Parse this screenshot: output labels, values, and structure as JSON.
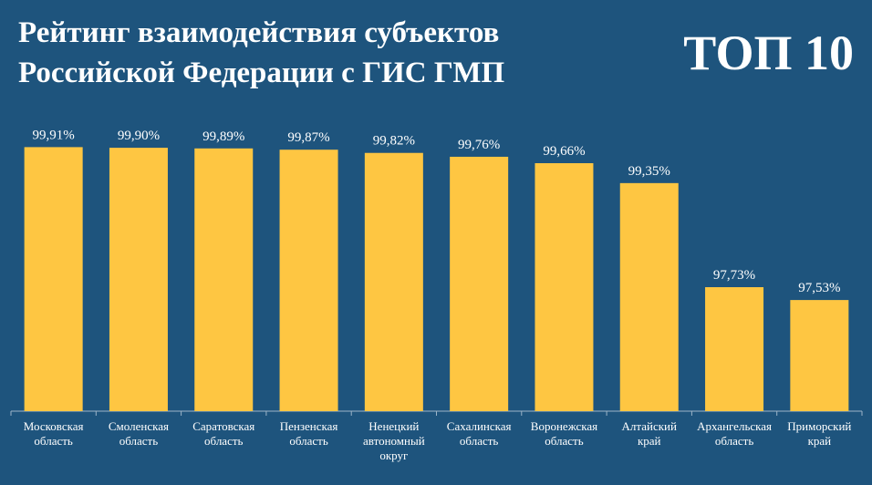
{
  "header": {
    "title_line1": "Рейтинг взаимодействия субъектов",
    "title_line2": "Российской Федерации с ГИС ГМП",
    "badge": "ТОП 10"
  },
  "colors": {
    "background": "#1e547d",
    "bar": "#fec642",
    "text": "#ffffff"
  },
  "chart_data": {
    "type": "bar",
    "title": "Рейтинг взаимодействия субъектов Российской Федерации с ГИС ГМП",
    "categories": [
      [
        "Московская",
        "область"
      ],
      [
        "Смоленская",
        "область"
      ],
      [
        "Саратовская",
        "область"
      ],
      [
        "Пензенская",
        "область"
      ],
      [
        "Ненецкий",
        "автономный",
        "округ"
      ],
      [
        "Сахалинская",
        "область"
      ],
      [
        "Воронежская",
        "область"
      ],
      [
        "Алтайский",
        "край"
      ],
      [
        "Архангельская",
        "область"
      ],
      [
        "Приморский",
        "край"
      ]
    ],
    "values": [
      99.91,
      99.9,
      99.89,
      99.87,
      99.82,
      99.76,
      99.66,
      99.35,
      97.73,
      97.53
    ],
    "value_labels": [
      "99,91%",
      "99,90%",
      "99,89%",
      "99,87%",
      "99,82%",
      "99,76%",
      "99,66%",
      "99,35%",
      "97,73%",
      "97,53%"
    ],
    "ylim": [
      95.8,
      100.1
    ],
    "xlabel": "",
    "ylabel": "",
    "grid": false,
    "legend": "none"
  }
}
